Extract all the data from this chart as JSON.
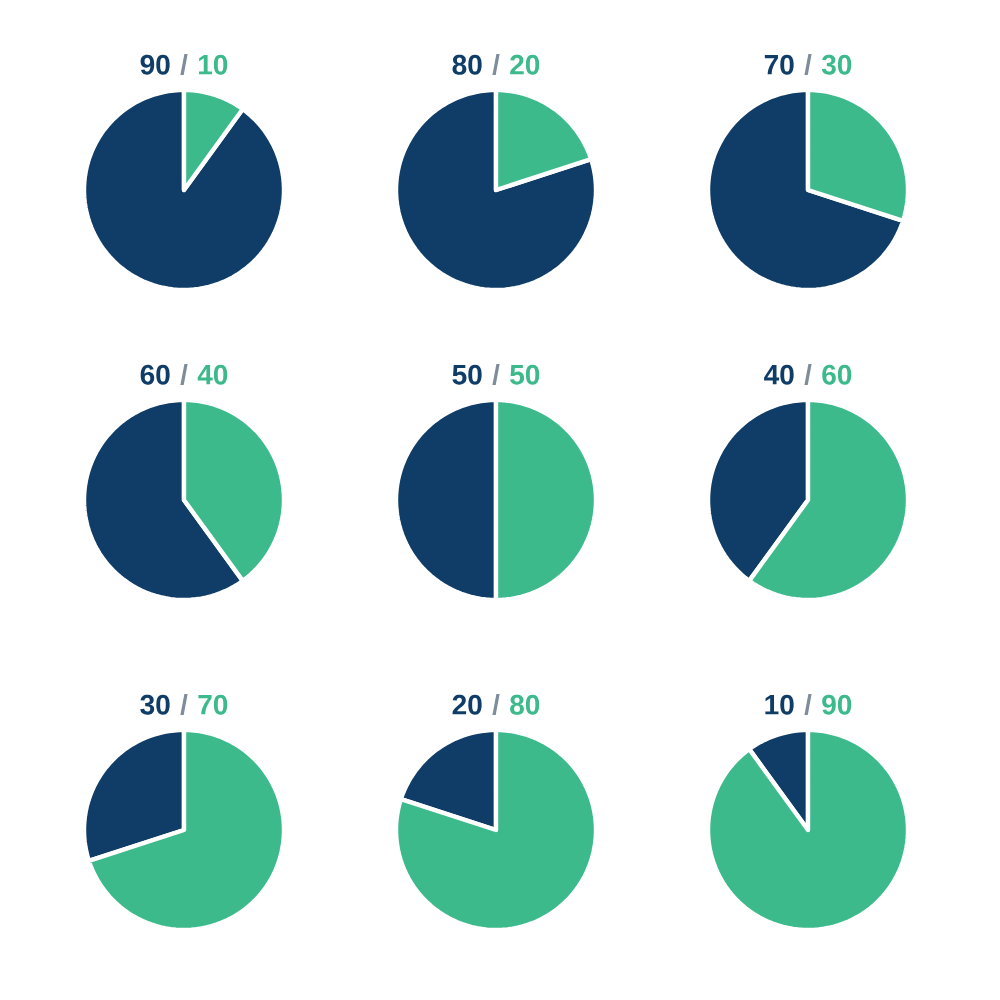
{
  "chart_data": [
    {
      "type": "pie",
      "categories": [
        null,
        null
      ],
      "values": [
        90,
        10
      ],
      "colors": [
        "#0f3d68",
        "#3dba8c"
      ],
      "data_labels": true,
      "annotations": [
        "/"
      ]
    },
    {
      "type": "pie",
      "categories": [
        null,
        null
      ],
      "values": [
        80,
        20
      ],
      "colors": [
        "#0f3d68",
        "#3dba8c"
      ],
      "data_labels": true,
      "annotations": [
        "/"
      ]
    },
    {
      "type": "pie",
      "categories": [
        null,
        null
      ],
      "values": [
        70,
        30
      ],
      "colors": [
        "#0f3d68",
        "#3dba8c"
      ],
      "data_labels": true,
      "annotations": [
        "/"
      ]
    },
    {
      "type": "pie",
      "categories": [
        null,
        null
      ],
      "values": [
        60,
        40
      ],
      "colors": [
        "#0f3d68",
        "#3dba8c"
      ],
      "data_labels": true,
      "annotations": [
        "/"
      ]
    },
    {
      "type": "pie",
      "categories": [
        null,
        null
      ],
      "values": [
        50,
        50
      ],
      "colors": [
        "#0f3d68",
        "#3dba8c"
      ],
      "data_labels": true,
      "annotations": [
        "/"
      ]
    },
    {
      "type": "pie",
      "categories": [
        null,
        null
      ],
      "values": [
        40,
        60
      ],
      "colors": [
        "#0f3d68",
        "#3dba8c"
      ],
      "data_labels": true,
      "annotations": [
        "/"
      ]
    },
    {
      "type": "pie",
      "categories": [
        null,
        null
      ],
      "values": [
        30,
        70
      ],
      "colors": [
        "#0f3d68",
        "#3dba8c"
      ],
      "data_labels": true,
      "annotations": [
        "/"
      ]
    },
    {
      "type": "pie",
      "categories": [
        null,
        null
      ],
      "values": [
        20,
        80
      ],
      "colors": [
        "#0f3d68",
        "#3dba8c"
      ],
      "data_labels": true,
      "annotations": [
        "/"
      ]
    },
    {
      "type": "pie",
      "categories": [
        null,
        null
      ],
      "values": [
        10,
        90
      ],
      "colors": [
        "#0f3d68",
        "#3dba8c"
      ],
      "data_labels": true,
      "annotations": [
        "/"
      ]
    }
  ]
}
